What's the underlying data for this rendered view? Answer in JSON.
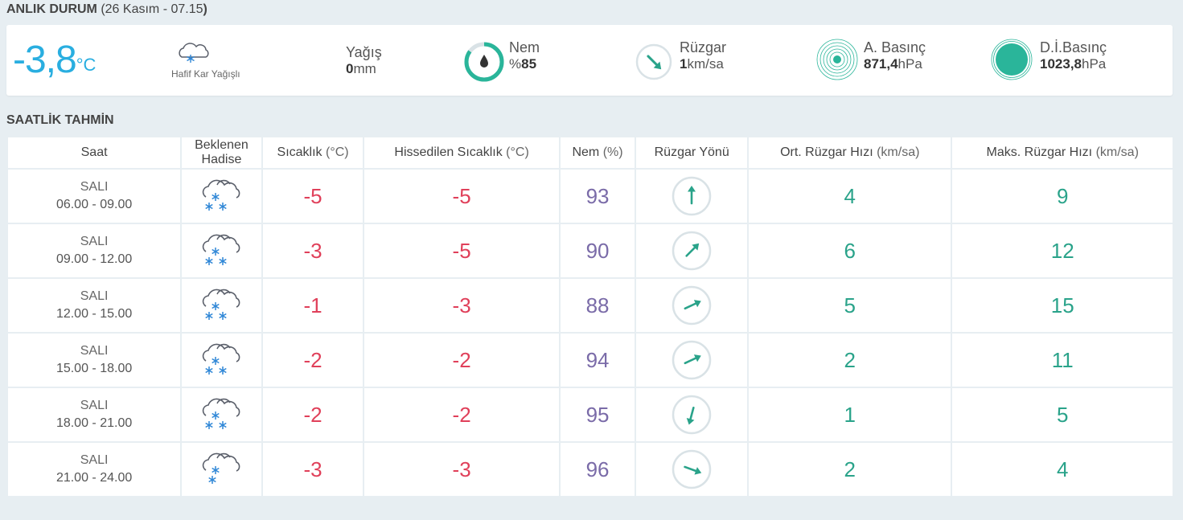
{
  "current": {
    "title": "ANLIK DURUM",
    "date_open": "(26 Kasım - 07.15",
    "date_close": ")",
    "temperature": "-3,8",
    "temperature_unit": "°C",
    "condition": "Hafif Kar Yağışlı",
    "condition_icon": "light-snow-icon",
    "rain": {
      "label": "Yağış",
      "value": "0",
      "unit": "mm"
    },
    "humidity": {
      "label": "Nem",
      "prefix": "%",
      "value": "85",
      "fraction": 0.85,
      "icon": "humidity-drop-icon"
    },
    "wind": {
      "label": "Rüzgar",
      "value": "1",
      "unit": "km/sa",
      "direction_deg": 135,
      "icon": "wind-direction-icon"
    },
    "pressure": {
      "label": "A. Basınç",
      "value": "871,4",
      "unit": "hPa",
      "icon": "pressure-ring-icon"
    },
    "sea_pressure": {
      "label": "D.İ.Basınç",
      "value": "1023,8",
      "unit": "hPa",
      "icon": "sea-pressure-icon"
    }
  },
  "hourly": {
    "title": "SAATLİK TAHMİN",
    "headers": {
      "time": "Saat",
      "event_1": "Beklenen",
      "event_2": "Hadise",
      "temp": "Sıcaklık",
      "temp_unit": "(°C)",
      "feel": "Hissedilen Sıcaklık",
      "feel_unit": "(°C)",
      "humidity": "Nem",
      "humidity_unit": "(%)",
      "wind_dir": "Rüzgar Yönü",
      "wind_avg": "Ort. Rüzgar Hızı",
      "wind_avg_unit": "(km/sa)",
      "wind_max": "Maks. Rüzgar Hızı",
      "wind_max_unit": "(km/sa)"
    },
    "rows": [
      {
        "day": "SALI",
        "range": "06.00 - 09.00",
        "icon": "snow-icon",
        "temp": "-5",
        "feel": "-5",
        "humidity": "93",
        "wind_dir_deg": 0,
        "wind_avg": "4",
        "wind_max": "9"
      },
      {
        "day": "SALI",
        "range": "09.00 - 12.00",
        "icon": "snow-icon",
        "temp": "-3",
        "feel": "-5",
        "humidity": "90",
        "wind_dir_deg": 45,
        "wind_avg": "6",
        "wind_max": "12"
      },
      {
        "day": "SALI",
        "range": "12.00 - 15.00",
        "icon": "snow-icon",
        "temp": "-1",
        "feel": "-3",
        "humidity": "88",
        "wind_dir_deg": 65,
        "wind_avg": "5",
        "wind_max": "15"
      },
      {
        "day": "SALI",
        "range": "15.00 - 18.00",
        "icon": "snow-icon",
        "temp": "-2",
        "feel": "-2",
        "humidity": "94",
        "wind_dir_deg": 65,
        "wind_avg": "2",
        "wind_max": "11"
      },
      {
        "day": "SALI",
        "range": "18.00 - 21.00",
        "icon": "snow-icon",
        "temp": "-2",
        "feel": "-2",
        "humidity": "95",
        "wind_dir_deg": 195,
        "wind_avg": "1",
        "wind_max": "5"
      },
      {
        "day": "SALI",
        "range": "21.00 - 24.00",
        "icon": "light-snow-icon",
        "temp": "-3",
        "feel": "-3",
        "humidity": "96",
        "wind_dir_deg": 110,
        "wind_avg": "2",
        "wind_max": "4"
      }
    ]
  },
  "colors": {
    "temperature_now": "#29aee0",
    "temp": "#e0405a",
    "humidity": "#7a6ba8",
    "wind": "#2aa38a",
    "accent": "#2ab59a"
  }
}
